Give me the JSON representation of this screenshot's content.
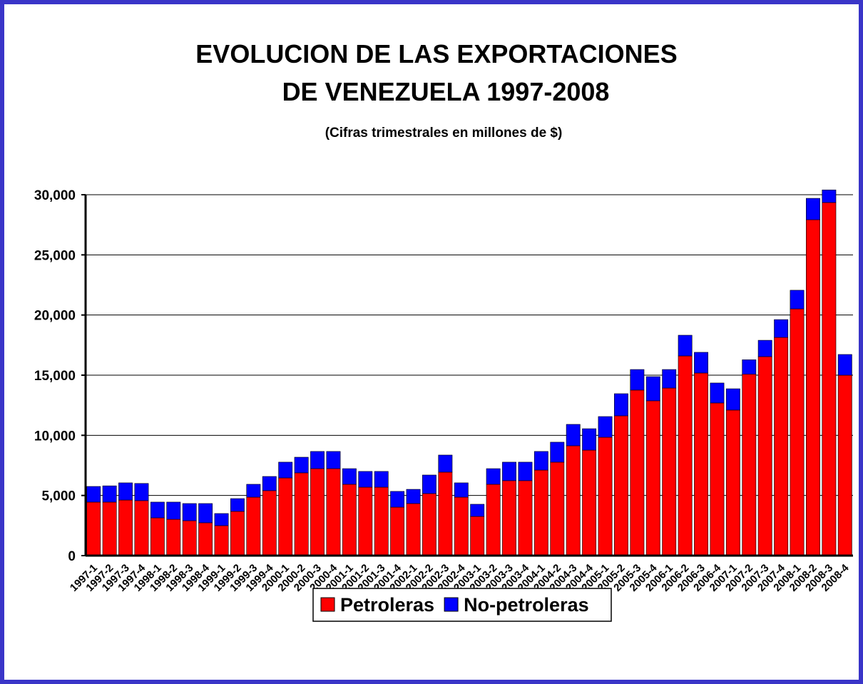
{
  "chart_data": {
    "type": "stacked_bar",
    "title": "EVOLUCION DE LAS EXPORTACIONES",
    "title2": "DE VENEZUELA 1997-2008",
    "subtitle": "(Cifras trimestrales en millones de $)",
    "categories": [
      "1997-1",
      "1997-2",
      "1997-3",
      "1997-4",
      "1998-1",
      "1998-2",
      "1998-3",
      "1998-4",
      "1999-1",
      "1999-2",
      "1999-3",
      "1999-4",
      "2000-1",
      "2000-2",
      "2000-3",
      "2000-4",
      "2001-1",
      "2001-2",
      "2001-3",
      "2001-4",
      "2002-1",
      "2002-2",
      "2002-3",
      "2002-4",
      "2003-1",
      "2003-2",
      "2003-3",
      "2003-4",
      "2004-1",
      "2004-2",
      "2004-3",
      "2004-4",
      "2005-1",
      "2005-2",
      "2005-3",
      "2005-4",
      "2006-1",
      "2006-2",
      "2006-3",
      "2006-4",
      "2007-1",
      "2007-2",
      "2007-3",
      "2007-4",
      "2008-1",
      "2008-2",
      "2008-3",
      "2008-4"
    ],
    "series": [
      {
        "name": "Petroleras",
        "color": "#ff0000",
        "values": [
          4450,
          4450,
          4620,
          4570,
          3140,
          3020,
          2900,
          2730,
          2490,
          3680,
          4860,
          5400,
          6460,
          6880,
          7230,
          7230,
          5930,
          5690,
          5690,
          4030,
          4330,
          5160,
          6940,
          4860,
          3260,
          5930,
          6230,
          6230,
          7110,
          7770,
          9130,
          8770,
          9840,
          11620,
          13760,
          12870,
          13930,
          16600,
          15180,
          12690,
          12100,
          15080,
          16540,
          18140,
          20510,
          27920,
          29350,
          15000
        ]
      },
      {
        "name": "No-petroleras",
        "color": "#0000ff",
        "values": [
          1300,
          1350,
          1430,
          1430,
          1310,
          1430,
          1430,
          1600,
          1010,
          1060,
          1070,
          1180,
          1310,
          1300,
          1430,
          1430,
          1300,
          1310,
          1310,
          1310,
          1180,
          1540,
          1420,
          1190,
          1010,
          1300,
          1540,
          1540,
          1550,
          1660,
          1780,
          1780,
          1720,
          1840,
          1710,
          2010,
          1540,
          1720,
          1720,
          1660,
          1770,
          1200,
          1360,
          1480,
          1550,
          1780,
          1050,
          1720
        ]
      }
    ],
    "ylim": [
      0,
      30000
    ],
    "yticks": [
      0,
      {
        "value": 5000,
        "label": "5,000"
      },
      {
        "value": 10000,
        "label": "10,000"
      },
      {
        "value": 15000,
        "label": "15,000"
      },
      {
        "value": 20000,
        "label": "20,000"
      },
      {
        "value": 25000,
        "label": "25,000"
      },
      {
        "value": 30000,
        "label": "30,000"
      }
    ],
    "grid": true,
    "legend": "bottom"
  }
}
